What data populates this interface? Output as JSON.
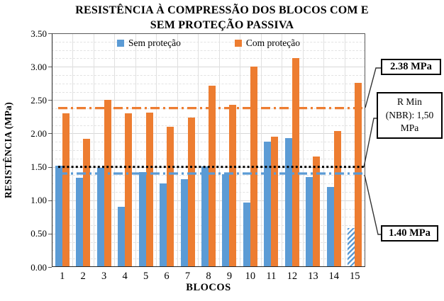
{
  "chart_data": {
    "type": "bar",
    "title": "RESISTÊNCIA À COMPRESSÃO DOS BLOCOS COM E\nSEM PROTEÇÃO PASSIVA",
    "xlabel": "BLOCOS",
    "ylabel": "RESISTÊNCIA (MPa)",
    "categories": [
      "1",
      "2",
      "3",
      "4",
      "5",
      "6",
      "7",
      "8",
      "9",
      "10",
      "11",
      "12",
      "13",
      "14",
      "15"
    ],
    "series": [
      {
        "name": "Sem proteção",
        "color": "#5B9BD5",
        "values": [
          1.52,
          1.34,
          1.48,
          0.9,
          1.42,
          1.25,
          1.32,
          1.51,
          1.39,
          0.97,
          1.88,
          1.93,
          1.35,
          1.2,
          0.58
        ],
        "hatched_indices": [
          14
        ]
      },
      {
        "name": "Com proteção",
        "color": "#ED7D31",
        "values": [
          2.3,
          1.92,
          2.5,
          2.3,
          2.31,
          2.1,
          2.24,
          2.72,
          2.43,
          3.0,
          1.95,
          3.13,
          1.65,
          2.04,
          2.76
        ]
      }
    ],
    "ylim": [
      0,
      3.5
    ],
    "y_major_tick": 0.5,
    "y_minor_grid": 0.125,
    "y_tick_labels": [
      "0.00",
      "0.50",
      "1.00",
      "1.50",
      "2.00",
      "2.50",
      "3.00",
      "3.50"
    ],
    "grid": true,
    "legend_position": "top-inside",
    "reference_lines": [
      {
        "label": "2.38 MPa",
        "value": 2.38,
        "color": "#ED7D31",
        "style": "dash-dot"
      },
      {
        "label": "R Min (NBR): 1,50 MPa",
        "value": 1.5,
        "color": "#000000",
        "style": "dotted"
      },
      {
        "label": "1.40 MPa",
        "value": 1.4,
        "color": "#5B9BD5",
        "style": "dash-dot"
      }
    ],
    "annotations": [
      {
        "text": "2.38 MPa",
        "bold": true
      },
      {
        "text": "R Min\n(NBR):  1,50\nMPa",
        "bold": false
      },
      {
        "text": "1.40 MPa",
        "bold": true
      }
    ]
  }
}
